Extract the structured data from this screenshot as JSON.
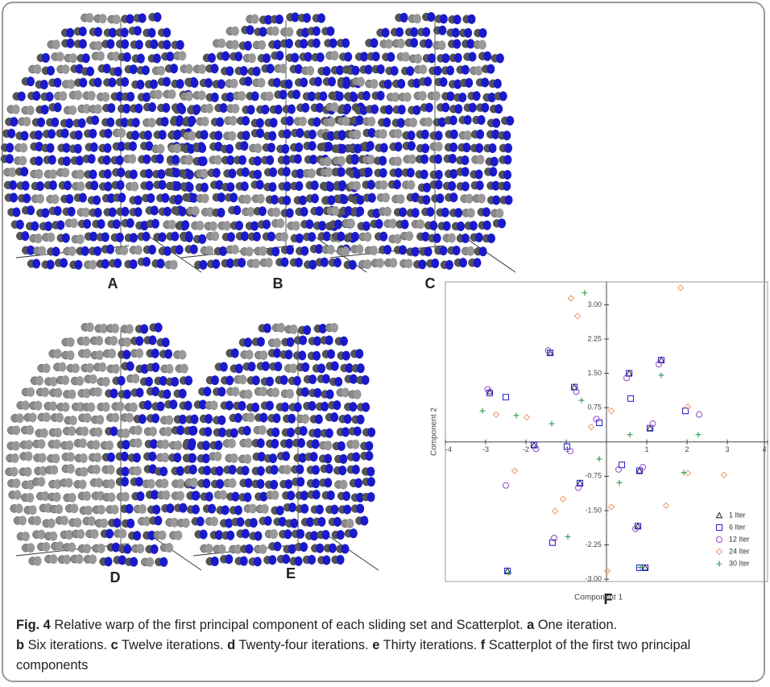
{
  "panels": [
    "A",
    "B",
    "C",
    "D",
    "E",
    "F"
  ],
  "chart_data": {
    "type": "scatter",
    "xlabel": "Component 1",
    "ylabel": "Component 2",
    "xlim": [
      -4,
      4
    ],
    "ylim": [
      -3.05,
      3.5
    ],
    "xticks": [
      -4,
      -3,
      -2,
      -1,
      1,
      2,
      3,
      4
    ],
    "yticks": [
      {
        "value": 3,
        "label": "3.00"
      },
      2.25,
      {
        "value": 1.5,
        "label": "1.50"
      },
      0.75,
      -0.75,
      {
        "value": -1.5,
        "label": "-1.50"
      },
      -2.25,
      {
        "value": -3,
        "label": "-3.00"
      }
    ],
    "legend": "bottom-right",
    "series": [
      {
        "name": "1 Iter",
        "color": "#333333",
        "marker": "triangle",
        "x": [
          -2.9,
          -1.4,
          -0.8,
          0.56,
          1.36,
          1.08,
          -1.8,
          0.82,
          -0.66,
          0.78,
          0.96,
          -2.46
        ],
        "values": [
          1.1,
          1.95,
          1.2,
          1.5,
          1.79,
          0.3,
          -0.07,
          -0.63,
          -0.9,
          -1.84,
          -2.75,
          -2.82
        ]
      },
      {
        "name": "6 Iter",
        "color": "#2a2acc",
        "marker": "square",
        "x": [
          -2.9,
          -2.5,
          -1.4,
          -0.8,
          0.56,
          1.36,
          1.08,
          -1.8,
          -0.98,
          0.82,
          0.38,
          -0.66,
          -1.34,
          0.78,
          0.82,
          0.96,
          -2.46,
          1.96,
          -0.18,
          0.6
        ],
        "values": [
          1.07,
          0.98,
          1.95,
          1.2,
          1.5,
          1.79,
          0.3,
          -0.07,
          -0.1,
          -0.63,
          -0.5,
          -0.9,
          -2.2,
          -1.84,
          -2.75,
          -2.75,
          -2.82,
          0.68,
          0.42,
          0.95
        ]
      },
      {
        "name": "12 Iter",
        "color": "#9955cc",
        "marker": "circle",
        "x": [
          -2.95,
          -1.45,
          -0.75,
          0.5,
          1.3,
          1.15,
          -1.75,
          -0.9,
          0.9,
          0.3,
          -0.7,
          -1.3,
          0.72,
          -2.5,
          2.3,
          -0.25
        ],
        "values": [
          1.15,
          2.0,
          1.1,
          1.4,
          1.7,
          0.4,
          -0.15,
          -0.2,
          -0.55,
          -0.6,
          -1.0,
          -2.1,
          -1.9,
          -0.95,
          0.6,
          0.5
        ]
      },
      {
        "name": "24 Iter",
        "color": "#f0a070",
        "marker": "diamond",
        "x": [
          1.84,
          -0.88,
          -0.72,
          -2.74,
          -1.98,
          -0.38,
          0.12,
          2.02,
          2.92,
          2.02,
          -2.28,
          -1.08,
          0.12,
          1.48,
          0.02,
          -1.28
        ],
        "values": [
          3.37,
          3.14,
          2.75,
          0.6,
          0.54,
          0.33,
          0.68,
          0.77,
          -0.72,
          -0.68,
          -0.63,
          -1.25,
          -1.42,
          -1.39,
          -2.82,
          -1.51
        ]
      },
      {
        "name": "30 Iter",
        "color": "#2a9a4a",
        "marker": "plus",
        "x": [
          -0.54,
          -3.08,
          -2.24,
          -1.36,
          -0.62,
          1.36,
          2.28,
          1.92,
          -0.96,
          -2.42,
          0.84,
          0.32,
          -0.18,
          0.58
        ],
        "values": [
          3.26,
          0.68,
          0.58,
          0.4,
          0.91,
          1.46,
          0.16,
          -0.67,
          -2.07,
          -2.86,
          -2.74,
          -0.89,
          -0.37,
          0.16
        ]
      }
    ]
  },
  "caption": {
    "label": "Fig. 4",
    "text": "Relative warp of the first principal component of each sliding set and Scatterplot.",
    "items": [
      {
        "letter": "a",
        "text": "One iteration."
      },
      {
        "letter": "b",
        "text": "Six iterations."
      },
      {
        "letter": "c",
        "text": "Twelve iterations."
      },
      {
        "letter": "d",
        "text": "Twenty-four iterations."
      },
      {
        "letter": "e",
        "text": "Thirty iterations."
      },
      {
        "letter": "f",
        "text": "Scatterplot of the first two principal components"
      }
    ]
  }
}
